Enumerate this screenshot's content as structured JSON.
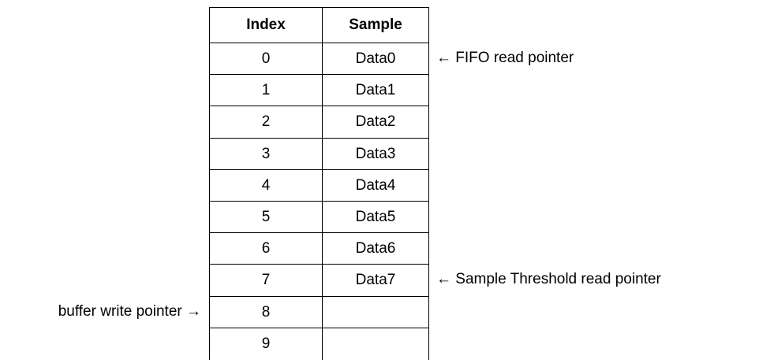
{
  "table": {
    "header": [
      "Index",
      "Sample"
    ],
    "rows": [
      [
        "0",
        "Data0"
      ],
      [
        "1",
        "Data1"
      ],
      [
        "2",
        "Data2"
      ],
      [
        "3",
        "Data3"
      ],
      [
        "4",
        "Data4"
      ],
      [
        "5",
        "Data5"
      ],
      [
        "6",
        "Data6"
      ],
      [
        "7",
        "Data7"
      ],
      [
        "8"
      ],
      [
        "9"
      ]
    ]
  },
  "annotations": {
    "fifo_read": "← FIFO read pointer",
    "threshold_read": "← Sample Threshold read pointer",
    "buffer_write": "buffer write pointer →"
  }
}
